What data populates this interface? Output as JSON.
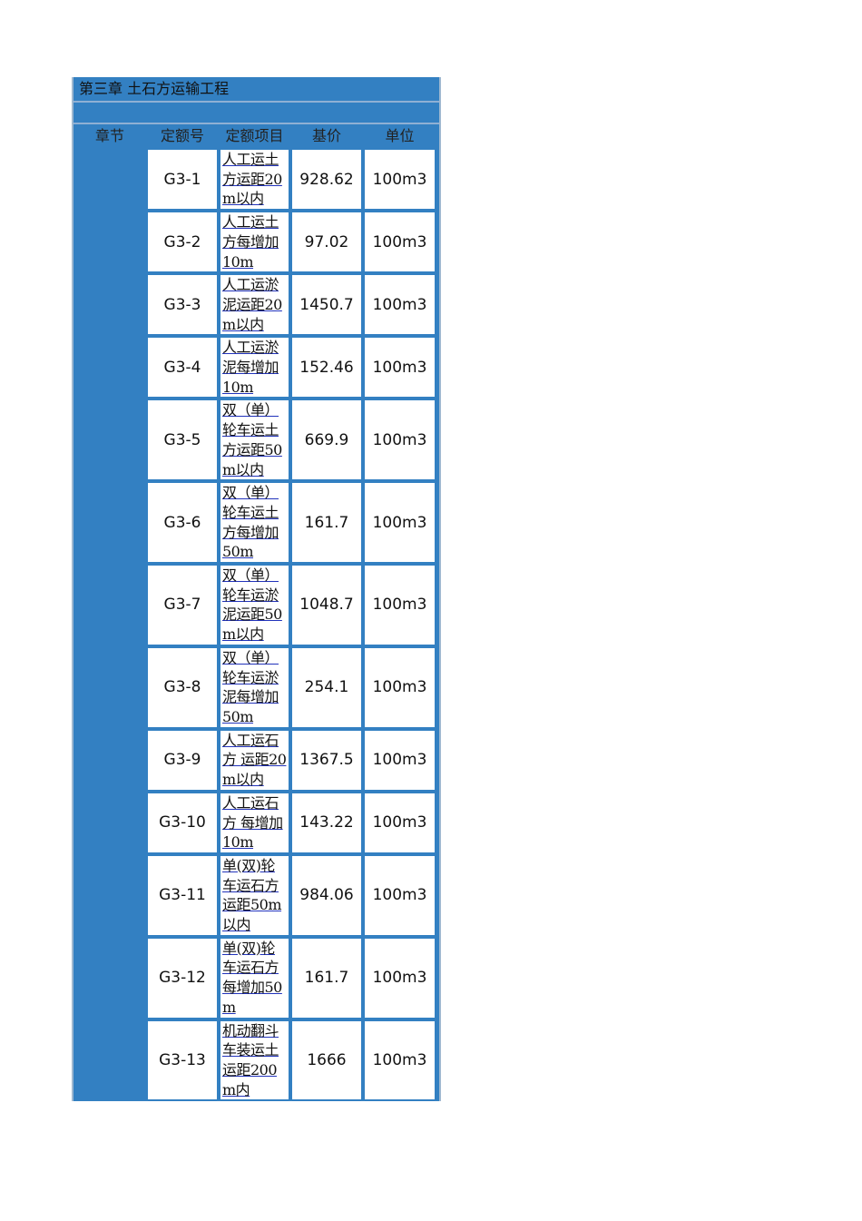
{
  "sheet": {
    "title": "第三章 土石方运输工程",
    "headers": [
      "章节",
      "定额号",
      "定额项目",
      "基价",
      "单位"
    ],
    "rows": [
      {
        "code": "G3-1",
        "item": "人工运土方运距20m以内",
        "price": "928.62",
        "unit": "100m3"
      },
      {
        "code": "G3-2",
        "item": "人工运土方每增加10m",
        "price": "97.02",
        "unit": "100m3"
      },
      {
        "code": "G3-3",
        "item": "人工运淤泥运距20m以内",
        "price": "1450.7",
        "unit": "100m3"
      },
      {
        "code": "G3-4",
        "item": "人工运淤泥每增加10m",
        "price": "152.46",
        "unit": "100m3"
      },
      {
        "code": "G3-5",
        "item": "双（单）轮车运土方运距50m以内",
        "price": "669.9",
        "unit": "100m3"
      },
      {
        "code": "G3-6",
        "item": "双（单）轮车运土方每增加50m",
        "price": "161.7",
        "unit": "100m3"
      },
      {
        "code": "G3-7",
        "item": "双（单）轮车运淤泥运距50m以内",
        "price": "1048.7",
        "unit": "100m3"
      },
      {
        "code": "G3-8",
        "item": "双（单）轮车运淤泥每增加50m",
        "price": "254.1",
        "unit": "100m3"
      },
      {
        "code": "G3-9",
        "item": "人工运石方 运距20m以内",
        "price": "1367.5",
        "unit": "100m3"
      },
      {
        "code": "G3-10",
        "item": "人工运石方 每增加10m",
        "price": "143.22",
        "unit": "100m3"
      },
      {
        "code": "G3-11",
        "item": "单(双)轮车运石方运距50m以内",
        "price": "984.06",
        "unit": "100m3"
      },
      {
        "code": "G3-12",
        "item": "单(双)轮车运石方每增加50m",
        "price": "161.7",
        "unit": "100m3"
      },
      {
        "code": "G3-13",
        "item": "机动翻斗车装运土运距200m内",
        "price": "1666",
        "unit": "100m3"
      }
    ]
  }
}
